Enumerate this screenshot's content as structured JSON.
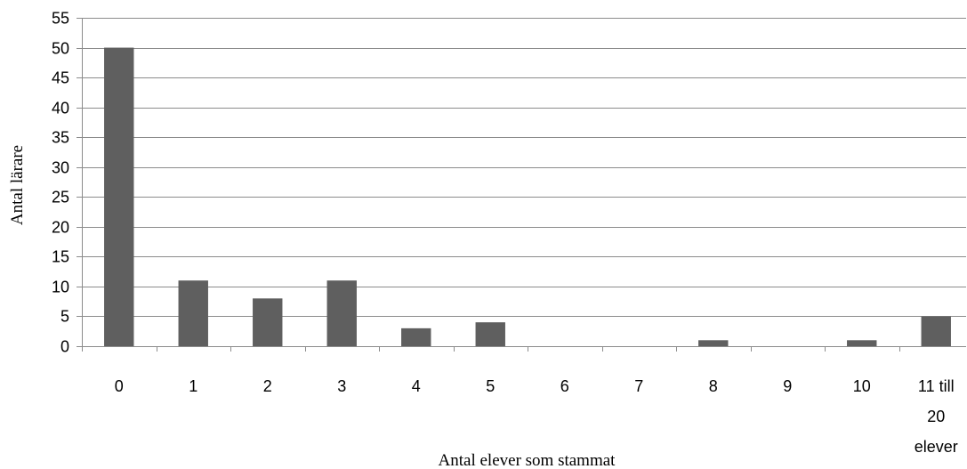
{
  "chart_data": {
    "type": "bar",
    "title": "",
    "xlabel": "Antal elever som stammat",
    "ylabel": "Antal lärare",
    "categories": [
      "0",
      "1",
      "2",
      "3",
      "4",
      "5",
      "6",
      "7",
      "8",
      "9",
      "10",
      "11 till 20 elever"
    ],
    "category_label_lines": [
      [
        "0"
      ],
      [
        "1"
      ],
      [
        "2"
      ],
      [
        "3"
      ],
      [
        "4"
      ],
      [
        "5"
      ],
      [
        "6"
      ],
      [
        "7"
      ],
      [
        "8"
      ],
      [
        "9"
      ],
      [
        "10"
      ],
      [
        "11 till",
        "20",
        "elever"
      ]
    ],
    "values": [
      50,
      11,
      8,
      11,
      3,
      4,
      0,
      0,
      1,
      0,
      1,
      5
    ],
    "ylim": [
      0,
      55
    ],
    "yticks": [
      0,
      5,
      10,
      15,
      20,
      25,
      30,
      35,
      40,
      45,
      50,
      55
    ],
    "grid": true,
    "legend": "none",
    "colors": {
      "bar": "#5f5f5f",
      "grid": "#8c8c8c",
      "text": "#000000"
    }
  }
}
